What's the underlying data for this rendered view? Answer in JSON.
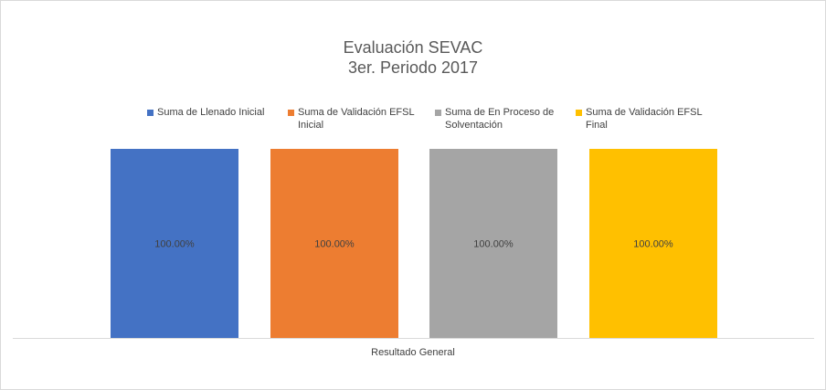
{
  "chart_data": {
    "type": "bar",
    "title": [
      "Evaluación SEVAC",
      "3er. Periodo 2017"
    ],
    "categories": [
      "Resultado General"
    ],
    "series": [
      {
        "name": "Suma de Llenado Inicial",
        "values": [
          100.0
        ],
        "label": "100.00%",
        "color": "#4472C4"
      },
      {
        "name": "Suma de Validación EFSL Inicial",
        "values": [
          100.0
        ],
        "label": "100.00%",
        "color": "#ED7D31"
      },
      {
        "name": "Suma de En Proceso de Solventación",
        "values": [
          100.0
        ],
        "label": "100.00%",
        "color": "#A5A5A5"
      },
      {
        "name": "Suma de Validación EFSL Final",
        "values": [
          100.0
        ],
        "label": "100.00%",
        "color": "#FFC000"
      }
    ],
    "ylim": [
      0,
      100
    ],
    "grid": false,
    "legend": "top"
  }
}
